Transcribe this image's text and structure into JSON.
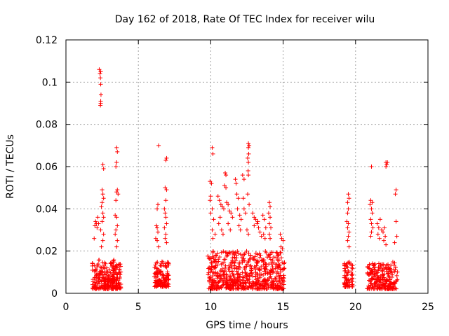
{
  "chart_data": {
    "type": "scatter",
    "title": "Day 162 of 2018, Rate Of TEC Index for receiver wilu",
    "xlabel": "GPS time / hours",
    "ylabel": "ROTI / TECUs",
    "xlim": [
      0,
      25
    ],
    "ylim": [
      0,
      0.12
    ],
    "xticks": [
      0,
      5,
      10,
      15,
      20,
      25
    ],
    "xtick_labels": [
      "0",
      "5",
      "10",
      "15",
      "20",
      "25"
    ],
    "yticks": [
      0,
      0.02,
      0.04,
      0.06,
      0.08,
      0.1,
      0.12
    ],
    "ytick_labels": [
      "0",
      "0.02",
      "0.04",
      "0.06",
      "0.08",
      "0.1",
      "0.12"
    ],
    "grid": true,
    "marker": "+",
    "color": "#ff0000",
    "series": [
      {
        "name": "ROTI",
        "clusters": [
          {
            "x_start": 1.8,
            "x_end": 3.8,
            "y_low": 0.002,
            "y_base_high": 0.016,
            "n": 260
          },
          {
            "x_start": 6.1,
            "x_end": 7.1,
            "y_low": 0.003,
            "y_base_high": 0.015,
            "n": 130
          },
          {
            "x_start": 9.8,
            "x_end": 15.1,
            "y_low": 0.002,
            "y_base_high": 0.02,
            "n": 620
          },
          {
            "x_start": 19.2,
            "x_end": 19.8,
            "y_low": 0.003,
            "y_base_high": 0.015,
            "n": 70
          },
          {
            "x_start": 20.8,
            "x_end": 22.9,
            "y_low": 0.002,
            "y_base_high": 0.015,
            "n": 220
          }
        ],
        "outliers": [
          [
            2.3,
            0.106
          ],
          [
            2.35,
            0.104
          ],
          [
            2.4,
            0.105
          ],
          [
            2.38,
            0.102
          ],
          [
            2.4,
            0.099
          ],
          [
            2.42,
            0.094
          ],
          [
            2.4,
            0.091
          ],
          [
            2.38,
            0.089
          ],
          [
            2.4,
            0.09
          ],
          [
            2.1,
            0.033
          ],
          [
            2.0,
            0.032
          ],
          [
            2.15,
            0.031
          ],
          [
            2.05,
            0.034
          ],
          [
            2.2,
            0.036
          ],
          [
            1.95,
            0.026
          ],
          [
            2.25,
            0.033
          ],
          [
            2.55,
            0.061
          ],
          [
            2.6,
            0.059
          ],
          [
            2.5,
            0.049
          ],
          [
            2.55,
            0.047
          ],
          [
            2.6,
            0.045
          ],
          [
            2.5,
            0.043
          ],
          [
            2.45,
            0.041
          ],
          [
            2.55,
            0.038
          ],
          [
            2.6,
            0.036
          ],
          [
            2.5,
            0.034
          ],
          [
            2.4,
            0.03
          ],
          [
            2.6,
            0.028
          ],
          [
            2.55,
            0.025
          ],
          [
            2.45,
            0.022
          ],
          [
            3.5,
            0.069
          ],
          [
            3.55,
            0.067
          ],
          [
            3.5,
            0.062
          ],
          [
            3.45,
            0.06
          ],
          [
            3.55,
            0.049
          ],
          [
            3.5,
            0.048
          ],
          [
            3.6,
            0.047
          ],
          [
            3.45,
            0.044
          ],
          [
            3.4,
            0.037
          ],
          [
            3.5,
            0.036
          ],
          [
            3.55,
            0.032
          ],
          [
            3.45,
            0.03
          ],
          [
            3.4,
            0.028
          ],
          [
            3.55,
            0.025
          ],
          [
            3.5,
            0.022
          ],
          [
            6.4,
            0.07
          ],
          [
            6.35,
            0.042
          ],
          [
            6.3,
            0.04
          ],
          [
            6.25,
            0.032
          ],
          [
            6.3,
            0.031
          ],
          [
            6.35,
            0.029
          ],
          [
            6.2,
            0.026
          ],
          [
            6.3,
            0.025
          ],
          [
            6.4,
            0.022
          ],
          [
            6.95,
            0.064
          ],
          [
            6.9,
            0.063
          ],
          [
            6.85,
            0.05
          ],
          [
            6.95,
            0.049
          ],
          [
            6.9,
            0.044
          ],
          [
            6.8,
            0.04
          ],
          [
            6.85,
            0.038
          ],
          [
            6.9,
            0.036
          ],
          [
            6.95,
            0.033
          ],
          [
            6.8,
            0.031
          ],
          [
            6.9,
            0.028
          ],
          [
            6.85,
            0.026
          ],
          [
            6.95,
            0.024
          ],
          [
            10.1,
            0.069
          ],
          [
            10.15,
            0.066
          ],
          [
            9.95,
            0.053
          ],
          [
            10.05,
            0.052
          ],
          [
            10.0,
            0.046
          ],
          [
            9.95,
            0.044
          ],
          [
            10.1,
            0.04
          ],
          [
            10.0,
            0.038
          ],
          [
            10.2,
            0.035
          ],
          [
            10.1,
            0.03
          ],
          [
            10.3,
            0.028
          ],
          [
            10.15,
            0.026
          ],
          [
            10.5,
            0.046
          ],
          [
            10.6,
            0.044
          ],
          [
            10.7,
            0.042
          ],
          [
            10.8,
            0.041
          ],
          [
            10.9,
            0.04
          ],
          [
            10.65,
            0.036
          ],
          [
            10.55,
            0.033
          ],
          [
            10.75,
            0.03
          ],
          [
            10.85,
            0.028
          ],
          [
            11.0,
            0.057
          ],
          [
            11.05,
            0.056
          ],
          [
            10.95,
            0.051
          ],
          [
            11.05,
            0.05
          ],
          [
            11.1,
            0.043
          ],
          [
            11.2,
            0.042
          ],
          [
            11.3,
            0.039
          ],
          [
            11.4,
            0.038
          ],
          [
            11.5,
            0.036
          ],
          [
            11.2,
            0.033
          ],
          [
            11.35,
            0.03
          ],
          [
            11.7,
            0.054
          ],
          [
            11.75,
            0.052
          ],
          [
            11.8,
            0.047
          ],
          [
            11.9,
            0.045
          ],
          [
            11.85,
            0.04
          ],
          [
            12.0,
            0.037
          ],
          [
            12.1,
            0.035
          ],
          [
            11.95,
            0.032
          ],
          [
            12.05,
            0.03
          ],
          [
            12.2,
            0.056
          ],
          [
            12.3,
            0.054
          ],
          [
            12.25,
            0.045
          ],
          [
            12.3,
            0.04
          ],
          [
            12.4,
            0.038
          ],
          [
            12.6,
            0.071
          ],
          [
            12.65,
            0.07
          ],
          [
            12.6,
            0.069
          ],
          [
            12.62,
            0.066
          ],
          [
            12.55,
            0.064
          ],
          [
            12.6,
            0.062
          ],
          [
            12.58,
            0.058
          ],
          [
            12.6,
            0.056
          ],
          [
            12.55,
            0.047
          ],
          [
            12.65,
            0.042
          ],
          [
            12.5,
            0.03
          ],
          [
            12.6,
            0.028
          ],
          [
            12.9,
            0.038
          ],
          [
            13.0,
            0.036
          ],
          [
            13.1,
            0.035
          ],
          [
            13.2,
            0.033
          ],
          [
            13.3,
            0.031
          ],
          [
            13.4,
            0.029
          ],
          [
            13.5,
            0.027
          ],
          [
            13.0,
            0.032
          ],
          [
            13.25,
            0.034
          ],
          [
            13.6,
            0.037
          ],
          [
            13.7,
            0.035
          ],
          [
            13.8,
            0.031
          ],
          [
            13.65,
            0.028
          ],
          [
            13.75,
            0.026
          ],
          [
            14.05,
            0.043
          ],
          [
            14.1,
            0.041
          ],
          [
            14.0,
            0.038
          ],
          [
            14.1,
            0.036
          ],
          [
            14.05,
            0.033
          ],
          [
            14.15,
            0.031
          ],
          [
            14.05,
            0.028
          ],
          [
            14.1,
            0.026
          ],
          [
            14.8,
            0.028
          ],
          [
            14.9,
            0.026
          ],
          [
            15.0,
            0.025
          ],
          [
            14.85,
            0.022
          ],
          [
            14.95,
            0.021
          ],
          [
            19.5,
            0.047
          ],
          [
            19.55,
            0.045
          ],
          [
            19.45,
            0.043
          ],
          [
            19.5,
            0.04
          ],
          [
            19.45,
            0.038
          ],
          [
            19.4,
            0.034
          ],
          [
            19.5,
            0.033
          ],
          [
            19.45,
            0.031
          ],
          [
            19.55,
            0.029
          ],
          [
            19.5,
            0.027
          ],
          [
            19.45,
            0.025
          ],
          [
            19.55,
            0.022
          ],
          [
            21.1,
            0.06
          ],
          [
            21.05,
            0.044
          ],
          [
            21.15,
            0.043
          ],
          [
            21.0,
            0.042
          ],
          [
            21.1,
            0.04
          ],
          [
            21.15,
            0.038
          ],
          [
            21.05,
            0.035
          ],
          [
            21.1,
            0.033
          ],
          [
            21.2,
            0.031
          ],
          [
            21.1,
            0.029
          ],
          [
            21.05,
            0.027
          ],
          [
            21.5,
            0.033
          ],
          [
            21.6,
            0.031
          ],
          [
            21.7,
            0.035
          ],
          [
            21.8,
            0.03
          ],
          [
            21.55,
            0.028
          ],
          [
            21.65,
            0.026
          ],
          [
            22.1,
            0.062
          ],
          [
            22.15,
            0.061
          ],
          [
            22.2,
            0.062
          ],
          [
            22.1,
            0.06
          ],
          [
            22.0,
            0.031
          ],
          [
            21.9,
            0.029
          ],
          [
            22.05,
            0.027
          ],
          [
            21.95,
            0.025
          ],
          [
            22.1,
            0.023
          ],
          [
            22.8,
            0.049
          ],
          [
            22.75,
            0.047
          ],
          [
            22.8,
            0.034
          ],
          [
            22.85,
            0.027
          ],
          [
            22.7,
            0.024
          ]
        ]
      }
    ]
  }
}
